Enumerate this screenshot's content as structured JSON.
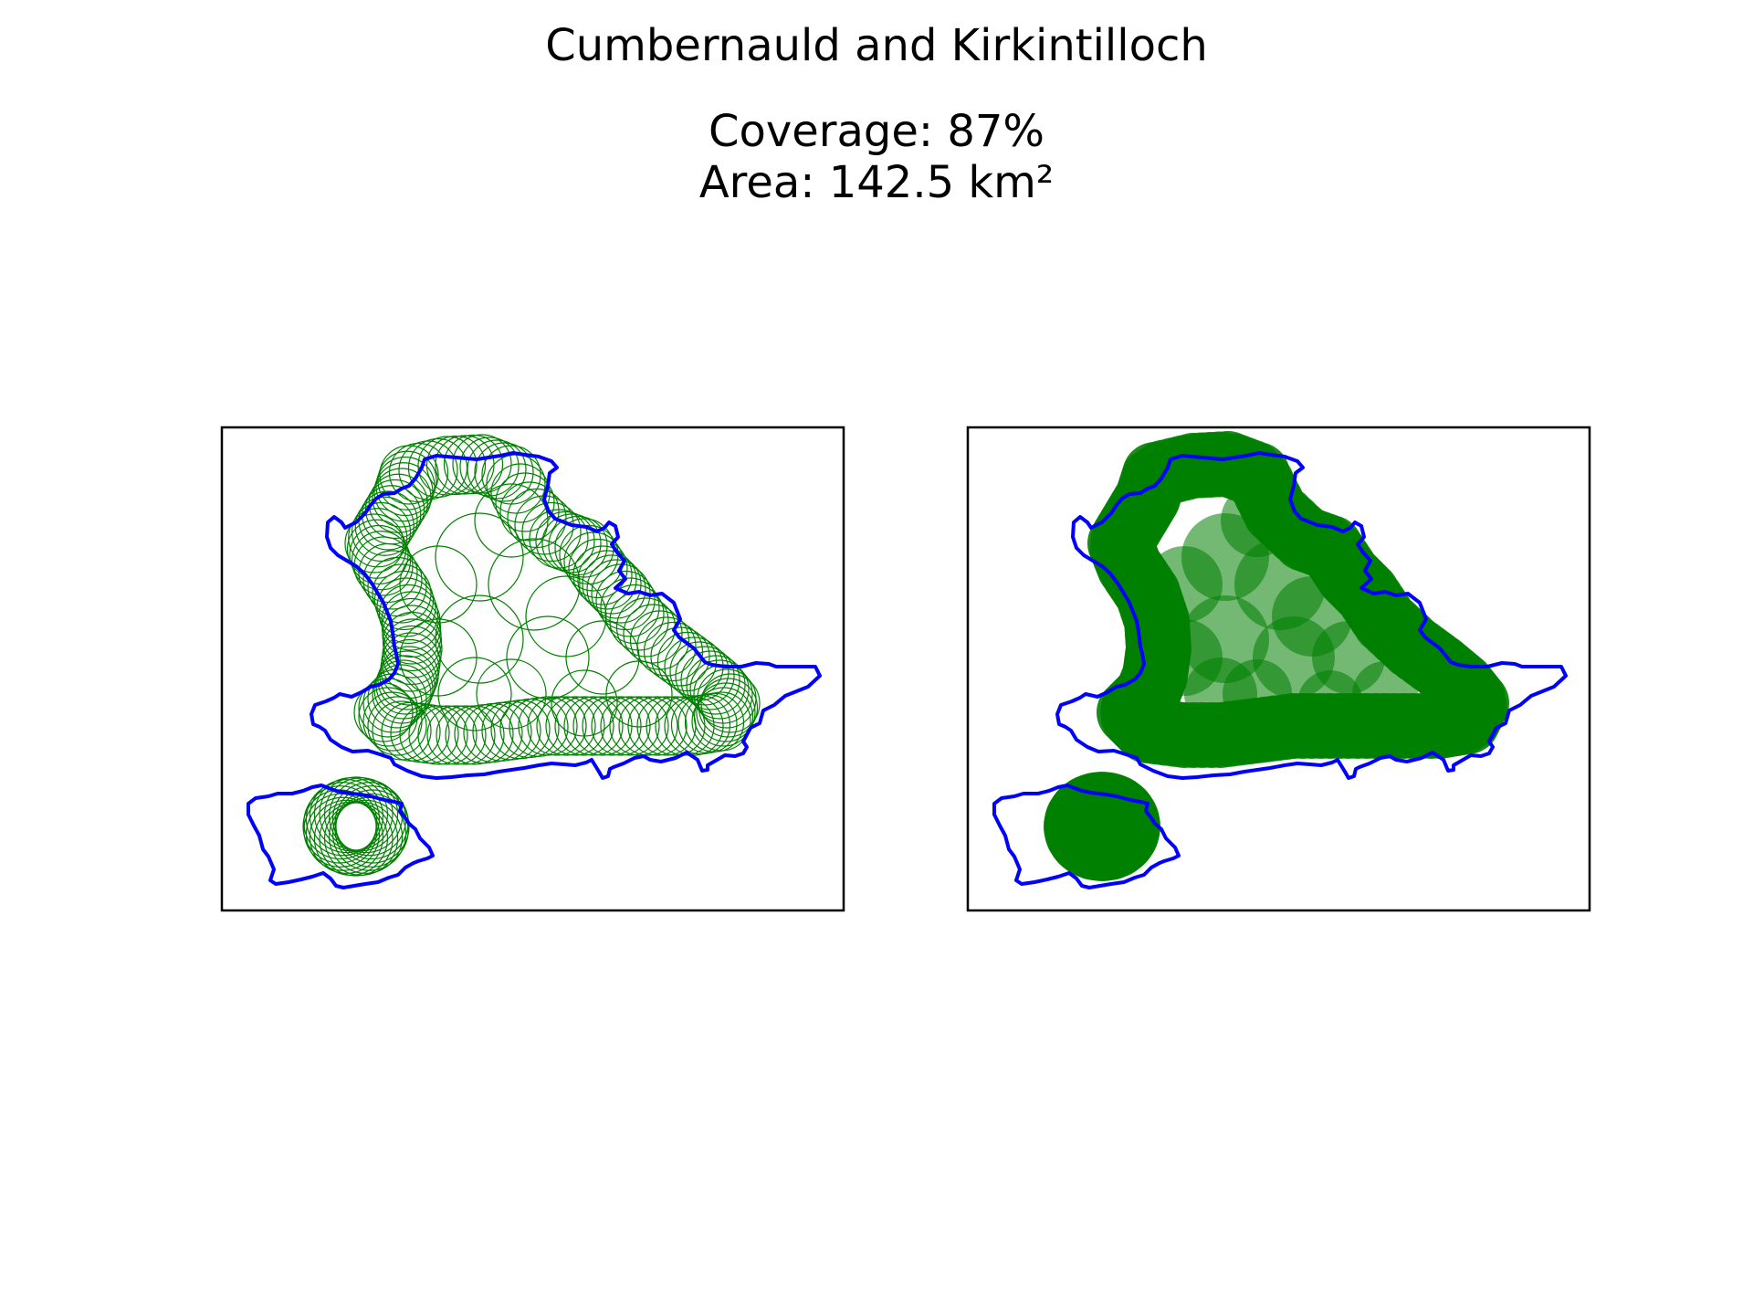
{
  "figure": {
    "title": "Cumbernauld and Kirkintilloch",
    "coverage_text": "Coverage: 87%",
    "area_text": "Area: 142.5 km²"
  },
  "colors": {
    "boundary": "#0000ff",
    "circle": "#008000",
    "frame": "#000000",
    "background": "#ffffff"
  },
  "panels": [
    {
      "name": "outline-panel",
      "style": "circle-outlines"
    },
    {
      "name": "filled-panel",
      "style": "filled-circles"
    }
  ],
  "map_data": {
    "coverage_percent": 87,
    "area_km2": 142.5
  }
}
